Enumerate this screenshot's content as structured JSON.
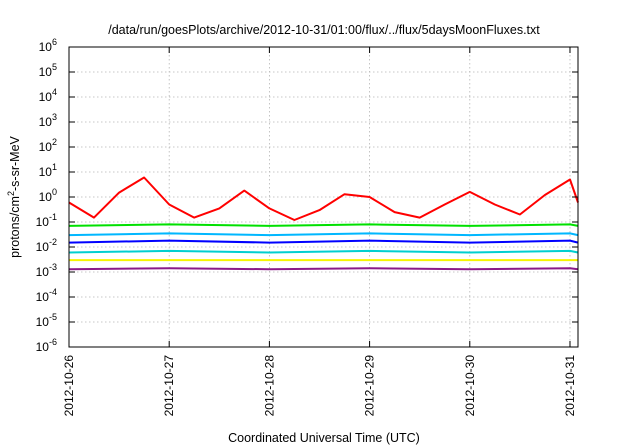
{
  "chart_data": {
    "type": "line",
    "title": "/data/run/goesPlots/archive/2012-10-31/01:00/flux/../flux/5daysMoonFluxes.txt",
    "xlabel": "Coordinated Universal Time (UTC)",
    "ylabel": "protons/cm²-s-sr-MeV",
    "ylabel_base": "protons/cm",
    "ylabel_sup": "2",
    "ylabel_rest": "-s-sr-MeV",
    "yscale": "log",
    "ylim_exp": [
      -6,
      6
    ],
    "xlim_days": [
      0,
      5.08
    ],
    "x_ticks": [
      {
        "label": "2012-10-26",
        "day": 0
      },
      {
        "label": "2012-10-27",
        "day": 1
      },
      {
        "label": "2012-10-28",
        "day": 2
      },
      {
        "label": "2012-10-29",
        "day": 3
      },
      {
        "label": "2012-10-30",
        "day": 4
      },
      {
        "label": "2012-10-31",
        "day": 5
      }
    ],
    "y_tick_base": "10",
    "y_ticks": [
      {
        "exp": 6,
        "label": "6"
      },
      {
        "exp": 5,
        "label": "5"
      },
      {
        "exp": 4,
        "label": "4"
      },
      {
        "exp": 3,
        "label": "3"
      },
      {
        "exp": 2,
        "label": "2"
      },
      {
        "exp": 1,
        "label": "1"
      },
      {
        "exp": 0,
        "label": "0"
      },
      {
        "exp": -1,
        "label": "-1"
      },
      {
        "exp": -2,
        "label": "-2"
      },
      {
        "exp": -3,
        "label": "-3"
      },
      {
        "exp": -4,
        "label": "-4"
      },
      {
        "exp": -5,
        "label": "-5"
      },
      {
        "exp": -6,
        "label": "-6"
      }
    ],
    "grid": true,
    "series": [
      {
        "color": "#ff0000",
        "x": [
          0,
          0.25,
          0.5,
          0.75,
          1.0,
          1.25,
          1.5,
          1.75,
          2.0,
          2.25,
          2.5,
          2.75,
          3.0,
          3.25,
          3.5,
          3.75,
          4.0,
          4.25,
          4.5,
          4.75,
          5.0,
          5.08
        ],
        "y": [
          0.6,
          0.15,
          1.5,
          6.0,
          0.5,
          0.15,
          0.35,
          1.8,
          0.35,
          0.12,
          0.3,
          1.3,
          1.0,
          0.25,
          0.15,
          0.5,
          1.6,
          0.5,
          0.2,
          1.2,
          5.0,
          0.6
        ]
      },
      {
        "color": "#00e000",
        "x": [
          0,
          1,
          2,
          3,
          4,
          5,
          5.08
        ],
        "y": [
          0.07,
          0.08,
          0.07,
          0.08,
          0.07,
          0.08,
          0.07
        ]
      },
      {
        "color": "#00b7ff",
        "x": [
          0,
          1,
          2,
          3,
          4,
          5,
          5.08
        ],
        "y": [
          0.03,
          0.035,
          0.03,
          0.035,
          0.03,
          0.035,
          0.03
        ]
      },
      {
        "color": "#0000ff",
        "x": [
          0,
          1,
          2,
          3,
          4,
          5,
          5.08
        ],
        "y": [
          0.015,
          0.018,
          0.015,
          0.018,
          0.015,
          0.018,
          0.015
        ]
      },
      {
        "color": "#00cfcf",
        "x": [
          0,
          1,
          2,
          3,
          4,
          5,
          5.08
        ],
        "y": [
          0.006,
          0.007,
          0.006,
          0.007,
          0.006,
          0.007,
          0.006
        ]
      },
      {
        "color": "#f5f500",
        "x": [
          0,
          1,
          2,
          3,
          4,
          5,
          5.08
        ],
        "y": [
          0.003,
          0.003,
          0.003,
          0.003,
          0.003,
          0.003,
          0.003
        ]
      },
      {
        "color": "#8b1a89",
        "x": [
          0,
          1,
          2,
          3,
          4,
          5,
          5.08
        ],
        "y": [
          0.0013,
          0.0014,
          0.0013,
          0.0014,
          0.0013,
          0.0014,
          0.0013
        ]
      }
    ]
  }
}
